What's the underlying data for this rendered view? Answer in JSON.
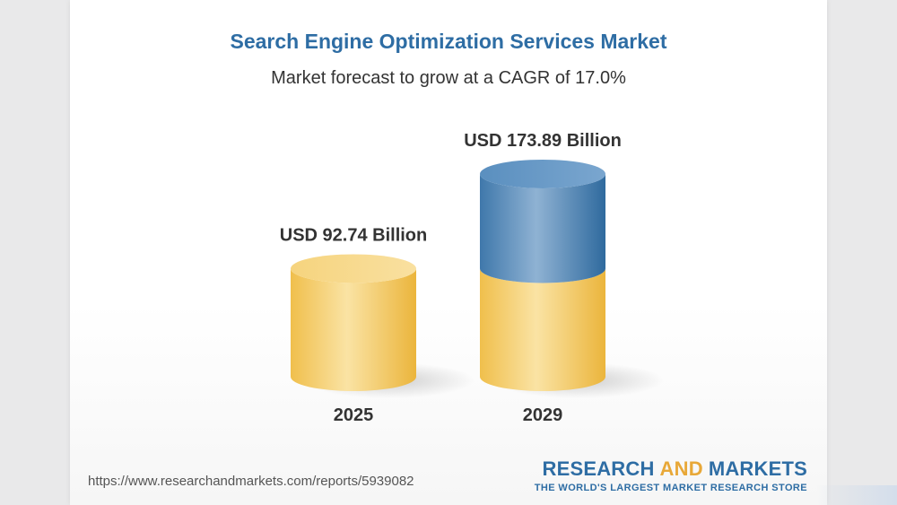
{
  "header": {
    "title": "Search Engine Optimization Services Market",
    "subtitle": "Market forecast to grow at a CAGR of 17.0%"
  },
  "chart_data": {
    "type": "bar",
    "style": "3d-cylinder",
    "categories": [
      "2025",
      "2029"
    ],
    "values": [
      92.74,
      173.89
    ],
    "value_labels": [
      "USD 92.74 Billion",
      "USD 173.89 Billion"
    ],
    "unit": "USD Billion",
    "cagr": "17.0%",
    "colors": {
      "base": "#f2c65c",
      "growth": "#4f86b6"
    }
  },
  "footer": {
    "url": "https://www.researchandmarkets.com/reports/5939082",
    "logo_word1": "RESEARCH",
    "logo_word2": "AND",
    "logo_word3": "MARKETS",
    "tagline": "THE WORLD'S LARGEST MARKET RESEARCH STORE"
  }
}
